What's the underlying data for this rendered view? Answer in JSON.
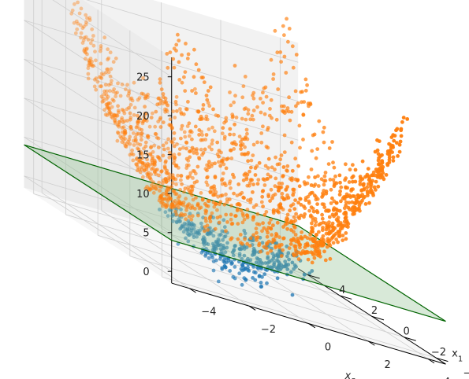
{
  "chart_data": {
    "type": "scatter",
    "projection": "3d",
    "title": "",
    "xlabel": "x1",
    "ylabel": "x2",
    "zlabel": "",
    "xlim": [
      -4,
      4
    ],
    "ylim": [
      -4,
      4
    ],
    "zlim": [
      0,
      26
    ],
    "x_ticks": [
      -4,
      -2,
      0,
      2,
      4
    ],
    "y_ticks": [
      -4,
      -2,
      0,
      2,
      4
    ],
    "z_ticks": [
      0,
      5,
      10,
      15,
      20,
      25
    ],
    "grid": true,
    "surface": "z = x1^2 + x2^2",
    "plane": {
      "z": 4,
      "color": "#006400",
      "fill": "#90c090"
    },
    "series": [
      {
        "color": "#1f77b4",
        "z_max": 4,
        "points_approx": 500
      },
      {
        "color": "#ff7f0e",
        "z_min": 4,
        "points_approx": 1500
      }
    ],
    "outliers": [
      {
        "x1": 0,
        "x2": 0,
        "z": 25.5
      },
      {
        "x1": -2.5,
        "x2": -3.8,
        "z": 21.5
      },
      {
        "x1": -3,
        "x2": -3.6,
        "z": 20.8
      },
      {
        "x1": 3.2,
        "x2": 3.4,
        "z": 19
      }
    ]
  }
}
